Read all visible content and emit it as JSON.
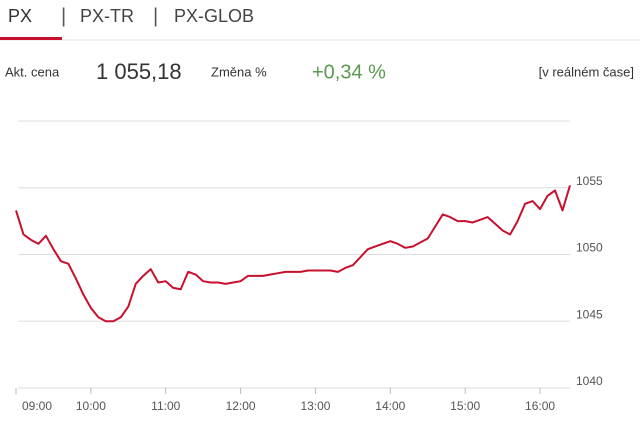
{
  "tabs": [
    "PX",
    "PX-TR",
    "PX-GLOB"
  ],
  "quote": {
    "price_label": "Akt. cena",
    "price": "1 055,18",
    "change_label": "Změna %",
    "change": "+0,34 %",
    "realtime": "[v reálném čase]"
  },
  "chart_data": {
    "type": "line",
    "color": "#c8102e",
    "x": [
      9.0,
      9.1,
      9.2,
      9.3,
      9.4,
      9.5,
      9.6,
      9.7,
      9.8,
      9.9,
      10.0,
      10.1,
      10.2,
      10.3,
      10.4,
      10.5,
      10.6,
      10.7,
      10.8,
      10.9,
      11.0,
      11.1,
      11.2,
      11.3,
      11.4,
      11.5,
      11.6,
      11.7,
      11.8,
      11.9,
      12.0,
      12.1,
      12.2,
      12.3,
      12.4,
      12.5,
      12.6,
      12.7,
      12.8,
      12.9,
      13.0,
      13.1,
      13.2,
      13.3,
      13.4,
      13.5,
      13.6,
      13.7,
      13.8,
      13.9,
      14.0,
      14.1,
      14.2,
      14.3,
      14.4,
      14.5,
      14.6,
      14.7,
      14.8,
      14.9,
      15.0,
      15.1,
      15.2,
      15.3,
      15.4,
      15.5,
      15.6,
      15.7,
      15.8,
      15.9,
      16.0,
      16.1,
      16.2,
      16.3,
      16.4
    ],
    "values": [
      1053.3,
      1051.5,
      1051.1,
      1050.8,
      1051.4,
      1050.4,
      1049.5,
      1049.3,
      1048.2,
      1047.0,
      1046.0,
      1045.3,
      1045.0,
      1045.0,
      1045.3,
      1046.1,
      1047.8,
      1048.4,
      1048.9,
      1047.9,
      1048.0,
      1047.5,
      1047.4,
      1048.7,
      1048.5,
      1048.0,
      1047.9,
      1047.9,
      1047.8,
      1047.9,
      1048.0,
      1048.4,
      1048.4,
      1048.4,
      1048.5,
      1048.6,
      1048.7,
      1048.7,
      1048.7,
      1048.8,
      1048.8,
      1048.8,
      1048.8,
      1048.7,
      1049.0,
      1049.2,
      1049.8,
      1050.4,
      1050.6,
      1050.8,
      1051.0,
      1050.8,
      1050.5,
      1050.6,
      1050.9,
      1051.2,
      1052.1,
      1053.0,
      1052.8,
      1052.5,
      1052.5,
      1052.4,
      1052.6,
      1052.8,
      1052.3,
      1051.8,
      1051.5,
      1052.5,
      1053.8,
      1054.0,
      1053.4,
      1054.4,
      1054.8,
      1053.3,
      1055.18
    ],
    "xlim": [
      9.0,
      16.4
    ],
    "xticks": [
      {
        "value": 9,
        "label": "09:00"
      },
      {
        "value": 10,
        "label": "10:00"
      },
      {
        "value": 11,
        "label": "11:00"
      },
      {
        "value": 12,
        "label": "12:00"
      },
      {
        "value": 13,
        "label": "13:00"
      },
      {
        "value": 14,
        "label": "14:00"
      },
      {
        "value": 15,
        "label": "15:00"
      },
      {
        "value": 16,
        "label": "16:00"
      }
    ],
    "ylim": [
      1040,
      1060
    ],
    "yticks": [
      1040,
      1045,
      1050,
      1055
    ],
    "grid": true
  }
}
